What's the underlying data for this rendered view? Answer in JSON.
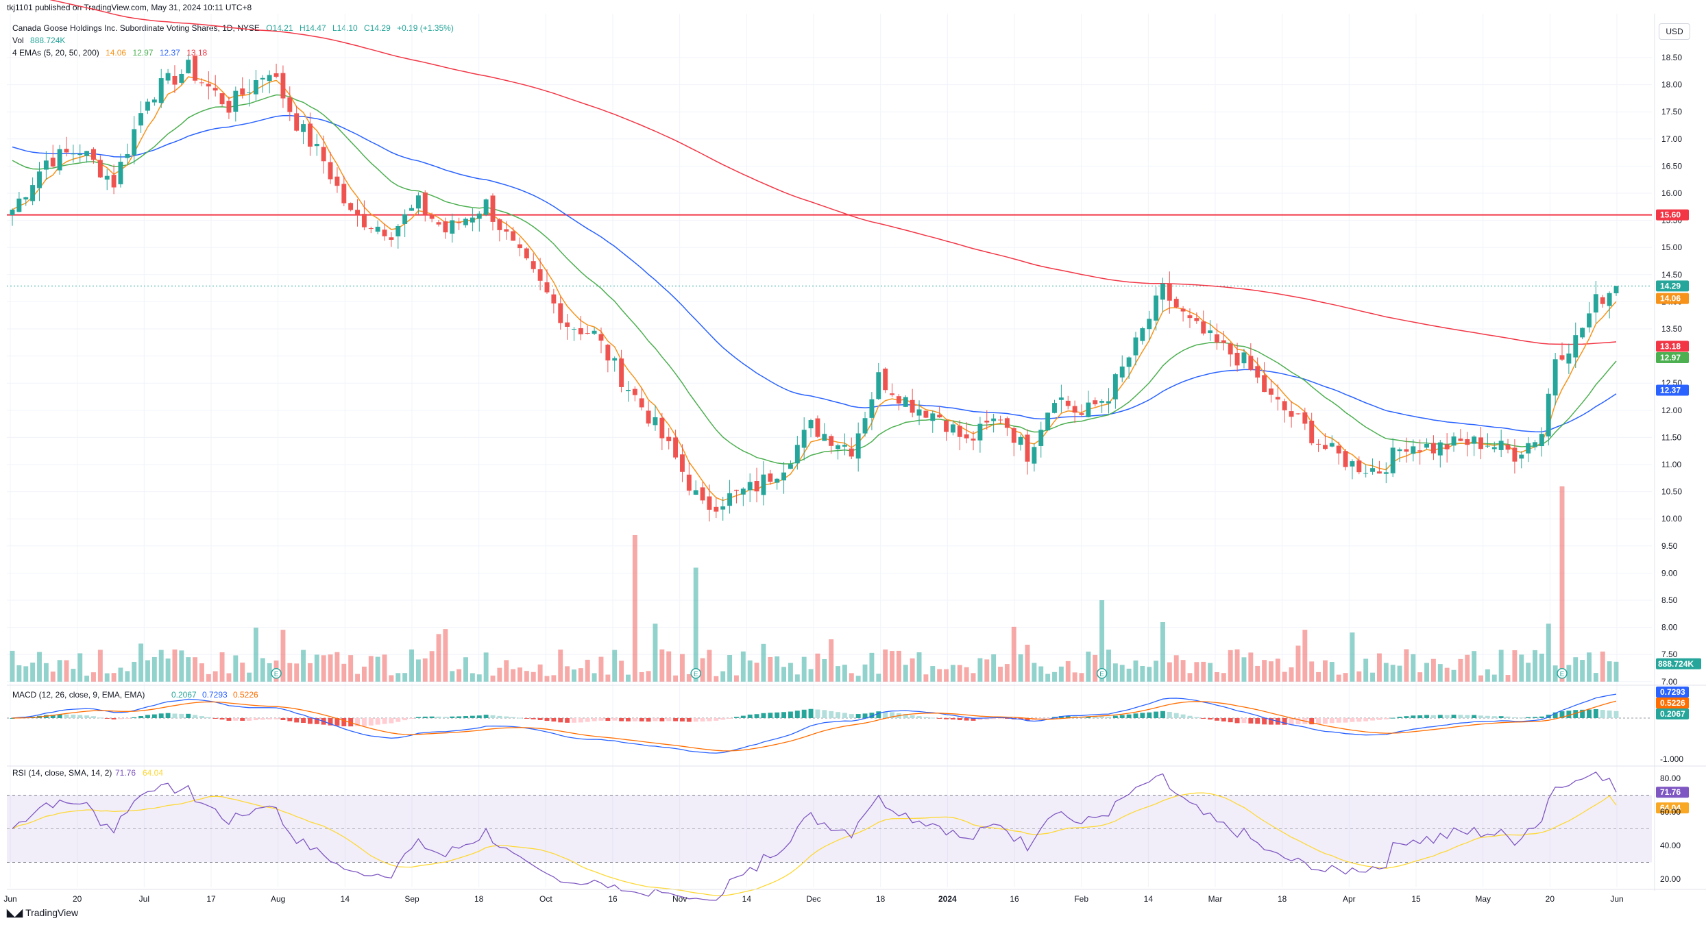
{
  "header": {
    "published": "tkj1101 published on TradingView.com, May 31, 2024 10:11 UTC+8",
    "symbol": "Canada Goose Holdings Inc. Subordinate Voting Shares, 1D, NYSE",
    "open": "O14.21",
    "high": "H14.47",
    "low": "L14.10",
    "close": "C14.29",
    "change": "+0.19 (+1.35%)",
    "vol_label": "Vol",
    "vol_value": "888.724K",
    "ema_label": "4 EMAs (5, 20, 50, 200)",
    "ema_values": [
      "14.06",
      "12.97",
      "12.37",
      "13.18"
    ],
    "currency": "USD"
  },
  "colors": {
    "up": "#26a69a",
    "down": "#ef5350",
    "ema5": "#f7931a",
    "ema20": "#4caf50",
    "ema50": "#2962ff",
    "ema200": "#f23645",
    "resistance": "#f23645",
    "rsi": "#7e57c2",
    "rsi_ma": "#fdd835",
    "macd": "#2962ff",
    "signal": "#ff6d00"
  },
  "chart_data": {
    "type": "candlestick",
    "price_axis_ticks": [
      "18.50",
      "18.00",
      "17.50",
      "17.00",
      "16.50",
      "16.00",
      "15.50",
      "15.00",
      "14.50",
      "14.00",
      "13.50",
      "13.00",
      "12.50",
      "12.00",
      "11.50",
      "11.00",
      "10.50",
      "10.00",
      "9.50",
      "9.00",
      "8.50",
      "8.00",
      "7.50",
      "7.00"
    ],
    "x_ticks": [
      "Jun",
      "20",
      "Jul",
      "17",
      "Aug",
      "14",
      "Sep",
      "18",
      "Oct",
      "16",
      "Nov",
      "14",
      "Dec",
      "18",
      "2024",
      "16",
      "Feb",
      "14",
      "Mar",
      "18",
      "Apr",
      "15",
      "May",
      "20",
      "Jun"
    ],
    "resistance_level": 15.6,
    "last_price": 14.29,
    "price_labels": [
      {
        "text": "15.60",
        "value": 15.6,
        "color": "#f23645"
      },
      {
        "text": "14.29",
        "value": 14.29,
        "color": "#26a69a"
      },
      {
        "text": "14.06",
        "value": 14.06,
        "color": "#f7931a"
      },
      {
        "text": "13.18",
        "value": 13.18,
        "color": "#f23645"
      },
      {
        "text": "12.97",
        "value": 12.97,
        "color": "#4caf50"
      },
      {
        "text": "12.37",
        "value": 12.37,
        "color": "#2962ff"
      }
    ],
    "volume_label": "888.724K",
    "earnings_marker": "E",
    "earnings_bars": [
      39,
      101,
      161,
      229
    ],
    "volume_spikes": [
      {
        "bar": 92,
        "value": 9.7
      },
      {
        "bar": 101,
        "value": 9.1
      },
      {
        "bar": 161,
        "value": 8.5
      },
      {
        "bar": 229,
        "value": 10.6
      }
    ],
    "price_anchors": [
      [
        0,
        15.7
      ],
      [
        5,
        16.6
      ],
      [
        10,
        16.8
      ],
      [
        15,
        16.2
      ],
      [
        20,
        17.8
      ],
      [
        26,
        18.3
      ],
      [
        32,
        17.6
      ],
      [
        38,
        18.3
      ],
      [
        42,
        17.3
      ],
      [
        46,
        16.6
      ],
      [
        50,
        15.6
      ],
      [
        56,
        15.3
      ],
      [
        60,
        15.8
      ],
      [
        64,
        15.3
      ],
      [
        70,
        15.8
      ],
      [
        74,
        15.0
      ],
      [
        78,
        14.3
      ],
      [
        82,
        13.6
      ],
      [
        86,
        13.4
      ],
      [
        90,
        12.6
      ],
      [
        94,
        11.9
      ],
      [
        98,
        11.1
      ],
      [
        102,
        10.2
      ],
      [
        106,
        10.4
      ],
      [
        110,
        10.6
      ],
      [
        114,
        11.0
      ],
      [
        118,
        11.7
      ],
      [
        124,
        11.3
      ],
      [
        128,
        12.6
      ],
      [
        133,
        12.1
      ],
      [
        137,
        11.9
      ],
      [
        141,
        11.4
      ],
      [
        146,
        11.9
      ],
      [
        150,
        11.2
      ],
      [
        154,
        12.3
      ],
      [
        158,
        11.9
      ],
      [
        162,
        12.3
      ],
      [
        166,
        13.2
      ],
      [
        170,
        14.2
      ],
      [
        174,
        13.6
      ],
      [
        178,
        13.2
      ],
      [
        182,
        12.9
      ],
      [
        186,
        12.2
      ],
      [
        190,
        11.8
      ],
      [
        194,
        11.3
      ],
      [
        198,
        11.0
      ],
      [
        202,
        10.9
      ],
      [
        206,
        11.4
      ],
      [
        210,
        11.3
      ],
      [
        214,
        11.4
      ],
      [
        218,
        11.4
      ],
      [
        222,
        11.2
      ],
      [
        226,
        11.6
      ],
      [
        228,
        13.0
      ],
      [
        231,
        13.3
      ],
      [
        234,
        14.0
      ],
      [
        237,
        14.29
      ]
    ],
    "macd": {
      "label": "MACD (12, 26, close, 9, EMA, EMA)",
      "values": [
        "0.2067",
        "0.7293",
        "0.5226"
      ],
      "ticks": [
        "0.7293",
        "0.5226",
        "0.2067",
        "-1.000"
      ],
      "last": {
        "macd": 0.7293,
        "signal": 0.5226,
        "hist": 0.2067
      }
    },
    "rsi": {
      "label": "RSI (14, close, SMA, 14, 2)",
      "values": [
        "71.76",
        "64.04"
      ],
      "ticks": [
        "80.00",
        "71.76",
        "64.04",
        "60.00",
        "40.00",
        "20.00"
      ],
      "upper": 70,
      "lower": 30,
      "last": 71.76,
      "last_ma": 64.04
    }
  },
  "footer": {
    "brand": "TradingView"
  }
}
